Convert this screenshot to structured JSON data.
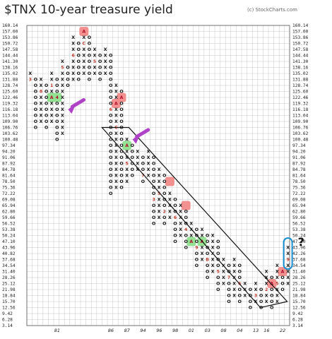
{
  "title": "$TNX 10-year treasure yield",
  "credit": "(c) StockCharts.com",
  "question_mark": "?",
  "chart_data": {
    "type": "point-and-figure",
    "y_ticks": [
      "160.14",
      "157.00",
      "153.86",
      "150.72",
      "147.58",
      "144.44",
      "141.30",
      "138.16",
      "135.02",
      "131.88",
      "128.74",
      "125.60",
      "122.46",
      "119.32",
      "116.18",
      "113.04",
      "109.90",
      "106.76",
      "103.62",
      "100.48",
      "97.34",
      "94.20",
      "91.06",
      "87.92",
      "84.78",
      "81.64",
      "78.50",
      "75.36",
      "72.22",
      "69.08",
      "65.94",
      "62.80",
      "59.66",
      "56.52",
      "53.38",
      "50.24",
      "47.10",
      "43.96",
      "40.82",
      "37.68",
      "34.54",
      "31.40",
      "28.26",
      "25.12",
      "21.98",
      "18.84",
      "15.70",
      "12.56",
      "9.42",
      "6.28",
      "3.14"
    ],
    "y_ticks_right_extra": {
      "index": 38,
      "label": "42.26"
    },
    "x_ticks": [
      {
        "label": "81",
        "col": 5
      },
      {
        "label": "86",
        "col": 15
      },
      {
        "label": "87",
        "col": 18
      },
      {
        "label": "94",
        "col": 21
      },
      {
        "label": "96",
        "col": 24
      },
      {
        "label": "98",
        "col": 27
      },
      {
        "label": "01",
        "col": 30
      },
      {
        "label": "03",
        "col": 33
      },
      {
        "label": "08",
        "col": 36
      },
      {
        "label": "04",
        "col": 39
      },
      {
        "label": "13",
        "col": 42
      },
      {
        "label": "16",
        "col": 44
      },
      {
        "label": "22",
        "col": 47
      }
    ],
    "box_size": 3.14,
    "columns": [
      {
        "col": 0,
        "type": "X",
        "from": 131.88,
        "to": 135.02
      },
      {
        "col": 1,
        "type": "O",
        "from": 131.88,
        "to": 106.76
      },
      {
        "col": 2,
        "type": "X",
        "from": 109.9,
        "to": 131.88
      },
      {
        "col": 3,
        "type": "O",
        "from": 128.74,
        "to": 106.76
      },
      {
        "col": 4,
        "type": "X",
        "from": 109.9,
        "to": 135.02
      },
      {
        "col": 5,
        "type": "O",
        "from": 131.88,
        "to": 100.48
      },
      {
        "col": 6,
        "type": "X",
        "from": 103.62,
        "to": 141.3
      },
      {
        "col": 7,
        "type": "O",
        "from": 138.16,
        "to": 128.74
      },
      {
        "col": 8,
        "type": "X",
        "from": 131.88,
        "to": 153.86
      },
      {
        "col": 9,
        "type": "O",
        "from": 150.72,
        "to": 131.88
      },
      {
        "col": 10,
        "type": "X",
        "from": 135.02,
        "to": 157.0
      },
      {
        "col": 11,
        "type": "O",
        "from": 153.86,
        "to": 131.88
      },
      {
        "col": 12,
        "type": "X",
        "from": 135.02,
        "to": 147.58
      },
      {
        "col": 13,
        "type": "O",
        "from": 144.44,
        "to": 131.88
      },
      {
        "col": 14,
        "type": "X",
        "from": 135.02,
        "to": 147.58
      },
      {
        "col": 15,
        "type": "O",
        "from": 144.44,
        "to": 72.22
      },
      {
        "col": 16,
        "type": "X",
        "from": 75.36,
        "to": 128.74
      },
      {
        "col": 17,
        "type": "O",
        "from": 125.6,
        "to": 75.36
      },
      {
        "col": 18,
        "type": "X",
        "from": 78.5,
        "to": 100.48
      },
      {
        "col": 19,
        "type": "O",
        "from": 97.34,
        "to": 81.64
      },
      {
        "col": 20,
        "type": "X",
        "from": 84.78,
        "to": 94.2
      },
      {
        "col": 21,
        "type": "O",
        "from": 91.06,
        "to": 78.5
      },
      {
        "col": 22,
        "type": "X",
        "from": 81.64,
        "to": 94.2
      },
      {
        "col": 23,
        "type": "O",
        "from": 91.06,
        "to": 56.52
      },
      {
        "col": 24,
        "type": "X",
        "from": 59.66,
        "to": 84.78
      },
      {
        "col": 25,
        "type": "O",
        "from": 81.64,
        "to": 56.52
      },
      {
        "col": 26,
        "type": "X",
        "from": 59.66,
        "to": 72.22
      },
      {
        "col": 27,
        "type": "O",
        "from": 69.08,
        "to": 47.1
      },
      {
        "col": 28,
        "type": "X",
        "from": 50.24,
        "to": 65.94
      },
      {
        "col": 29,
        "type": "O",
        "from": 62.8,
        "to": 43.96
      },
      {
        "col": 30,
        "type": "X",
        "from": 47.1,
        "to": 56.52
      },
      {
        "col": 31,
        "type": "O",
        "from": 53.38,
        "to": 34.54
      },
      {
        "col": 32,
        "type": "X",
        "from": 37.68,
        "to": 53.38
      },
      {
        "col": 33,
        "type": "O",
        "from": 50.24,
        "to": 28.26
      },
      {
        "col": 34,
        "type": "X",
        "from": 31.4,
        "to": 50.24
      },
      {
        "col": 35,
        "type": "O",
        "from": 47.1,
        "to": 21.98
      },
      {
        "col": 36,
        "type": "X",
        "from": 25.12,
        "to": 37.68
      },
      {
        "col": 37,
        "type": "O",
        "from": 34.54,
        "to": 15.7
      },
      {
        "col": 38,
        "type": "X",
        "from": 18.84,
        "to": 37.68
      },
      {
        "col": 39,
        "type": "O",
        "from": 34.54,
        "to": 15.7
      },
      {
        "col": 40,
        "type": "X",
        "from": 18.84,
        "to": 25.12
      },
      {
        "col": 41,
        "type": "O",
        "from": 21.98,
        "to": 12.56
      },
      {
        "col": 42,
        "type": "X",
        "from": 15.7,
        "to": 25.12
      },
      {
        "col": 43,
        "type": "O",
        "from": 21.98,
        "to": 12.56
      },
      {
        "col": 44,
        "type": "X",
        "from": 15.7,
        "to": 31.4
      },
      {
        "col": 45,
        "type": "O",
        "from": 28.26,
        "to": 12.56
      },
      {
        "col": 46,
        "type": "X",
        "from": 15.7,
        "to": 34.54
      },
      {
        "col": 47,
        "type": "O",
        "from": 31.4,
        "to": 21.98
      },
      {
        "col": 48,
        "type": "X",
        "from": 25.12,
        "to": 43.96
      }
    ],
    "highlights": [
      {
        "col": 4,
        "value": 122.46,
        "color": "green",
        "label": "A"
      },
      {
        "col": 5,
        "value": 122.46,
        "color": "green",
        "label": "4"
      },
      {
        "col": 10,
        "value": 157.0,
        "color": "red",
        "label": "A"
      },
      {
        "col": 16,
        "value": 119.32,
        "color": "red",
        "label": "A"
      },
      {
        "col": 17,
        "value": 122.46,
        "color": "red",
        "label": "A"
      },
      {
        "col": 18,
        "value": 97.34,
        "color": "green",
        "label": "A"
      },
      {
        "col": 26,
        "value": 78.5,
        "color": "red",
        "label": "A"
      },
      {
        "col": 29,
        "value": 65.94,
        "color": "red",
        "label": "A"
      },
      {
        "col": 30,
        "value": 47.1,
        "color": "green",
        "label": "A"
      },
      {
        "col": 32,
        "value": 47.1,
        "color": "green",
        "label": "A"
      },
      {
        "col": 45,
        "value": 25.12,
        "color": "red",
        "label": "A"
      },
      {
        "col": 47,
        "value": 31.4,
        "color": "red",
        "label": "A"
      }
    ],
    "month_markers": [
      {
        "col": 0,
        "value": 131.88,
        "label": "3"
      },
      {
        "col": 2,
        "value": 125.6,
        "label": "8"
      },
      {
        "col": 4,
        "value": 128.74,
        "label": "1"
      },
      {
        "col": 6,
        "value": 138.16,
        "label": "5"
      },
      {
        "col": 8,
        "value": 144.44,
        "label": "6"
      },
      {
        "col": 10,
        "value": 150.72,
        "label": "C"
      },
      {
        "col": 12,
        "value": 141.3,
        "label": "5"
      },
      {
        "col": 15,
        "value": 116.18,
        "label": "6"
      },
      {
        "col": 16,
        "value": 106.76,
        "label": "C"
      },
      {
        "col": 18,
        "value": 87.92,
        "label": "5"
      },
      {
        "col": 21,
        "value": 81.64,
        "label": "7"
      },
      {
        "col": 23,
        "value": 69.08,
        "label": "3"
      },
      {
        "col": 24,
        "value": 72.22,
        "label": "5"
      },
      {
        "col": 25,
        "value": 62.8,
        "label": "2"
      },
      {
        "col": 27,
        "value": 59.66,
        "label": "6"
      },
      {
        "col": 29,
        "value": 53.38,
        "label": "4"
      },
      {
        "col": 31,
        "value": 43.96,
        "label": "9"
      },
      {
        "col": 33,
        "value": 37.68,
        "label": "B"
      },
      {
        "col": 35,
        "value": 31.4,
        "label": "5"
      },
      {
        "col": 37,
        "value": 28.26,
        "label": "7"
      },
      {
        "col": 39,
        "value": 25.12,
        "label": "6"
      },
      {
        "col": 42,
        "value": 18.84,
        "label": "3"
      },
      {
        "col": 44,
        "value": 21.98,
        "label": "2"
      },
      {
        "col": 46,
        "value": 25.12,
        "label": "5"
      },
      {
        "col": 48,
        "value": 37.68,
        "label": "9"
      }
    ],
    "annotation_box": {
      "corners": [
        [
          14,
          106.76
        ],
        [
          19,
          106.76
        ],
        [
          48.5,
          15.7
        ],
        [
          43.5,
          12.56
        ]
      ]
    },
    "arrows": [
      {
        "target_col": 6,
        "target_value": 116.18
      },
      {
        "target_col": 18,
        "target_value": 100.48
      }
    ],
    "callout_oval": {
      "col": 48,
      "from": 34.54,
      "to": 47.1
    },
    "grid": true
  }
}
